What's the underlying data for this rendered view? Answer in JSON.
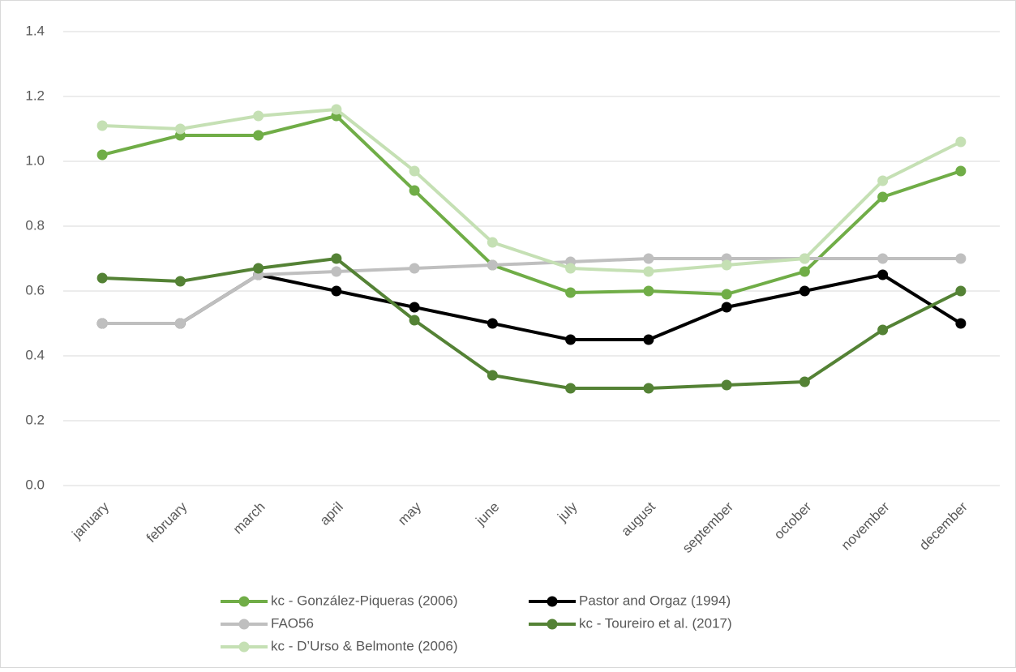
{
  "chart_data": {
    "type": "line",
    "categories": [
      "january",
      "february",
      "march",
      "april",
      "may",
      "june",
      "july",
      "august",
      "september",
      "october",
      "november",
      "december"
    ],
    "series": [
      {
        "name": "kc - González-Piqueras (2006)",
        "color": "#70ad47",
        "values": [
          1.02,
          1.08,
          1.08,
          1.14,
          0.91,
          0.68,
          0.595,
          0.6,
          0.59,
          0.66,
          0.89,
          0.97
        ]
      },
      {
        "name": "Pastor and Orgaz (1994)",
        "color": "#000000",
        "values": [
          0.5,
          0.5,
          0.65,
          0.6,
          0.55,
          0.5,
          0.45,
          0.45,
          0.55,
          0.6,
          0.65,
          0.5
        ]
      },
      {
        "name": "FAO56",
        "color": "#bfbfbf",
        "values": [
          0.5,
          0.5,
          0.65,
          0.66,
          0.67,
          0.68,
          0.69,
          0.7,
          0.7,
          0.7,
          0.7,
          0.7
        ]
      },
      {
        "name": "kc - Toureiro et al. (2017)",
        "color": "#548235",
        "values": [
          0.64,
          0.63,
          0.67,
          0.7,
          0.51,
          0.34,
          0.3,
          0.3,
          0.31,
          0.32,
          0.48,
          0.6
        ]
      },
      {
        "name": "kc - D’Urso & Belmonte (2006)",
        "color": "#c5e0b4",
        "values": [
          1.11,
          1.1,
          1.14,
          1.16,
          0.97,
          0.75,
          0.67,
          0.66,
          0.68,
          0.7,
          0.94,
          1.06
        ]
      }
    ],
    "ylim": [
      0,
      1.4
    ],
    "yticks": [
      {
        "value": 0,
        "label": "0.0"
      },
      0.2,
      0.4,
      0.6,
      0.8,
      {
        "value": 1,
        "label": "1.0"
      },
      1.2,
      1.4
    ],
    "grid": true,
    "legend": "bottom"
  }
}
